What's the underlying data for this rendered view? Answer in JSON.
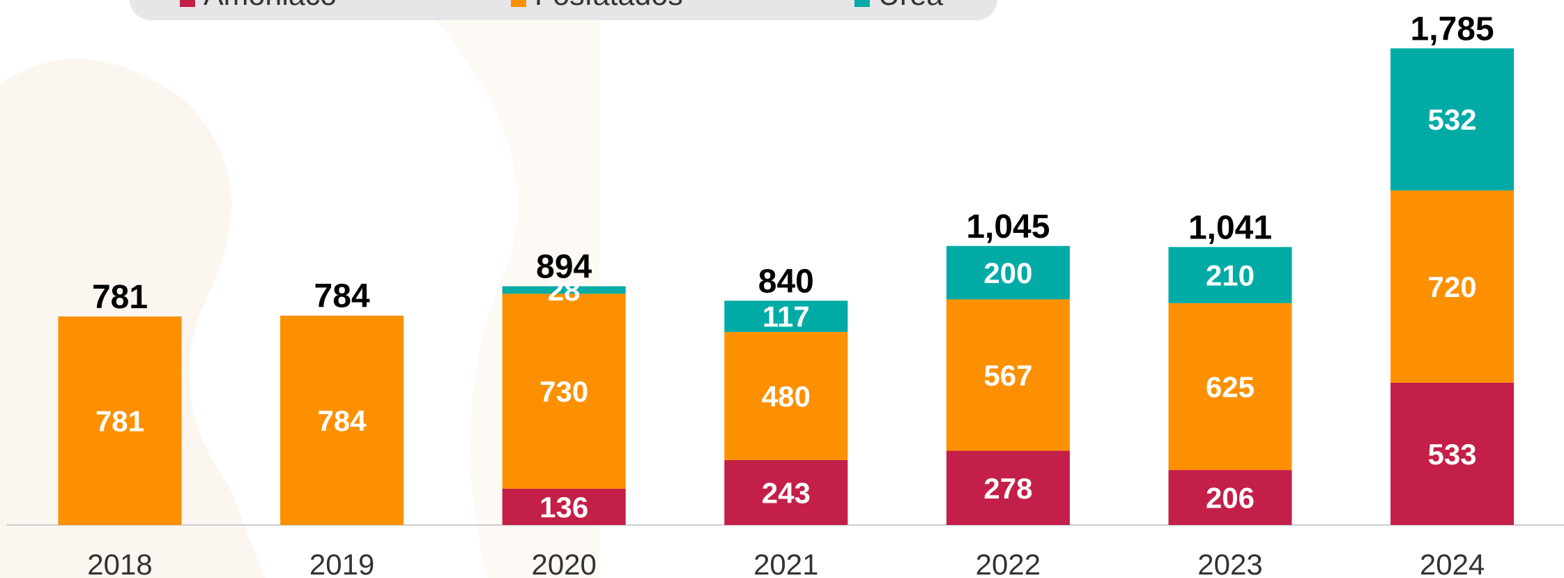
{
  "chart_data": {
    "type": "stacked_bar",
    "categories": [
      "2018",
      "2019",
      "2020",
      "2021",
      "2022",
      "2023",
      "2024"
    ],
    "series": [
      {
        "name": "Amoniaco",
        "color": "#c31f48",
        "values": [
          null,
          null,
          136,
          243,
          278,
          206,
          533
        ]
      },
      {
        "name": "Fosfatados",
        "color": "#fd9000",
        "values": [
          781,
          784,
          730,
          480,
          567,
          625,
          720
        ]
      },
      {
        "name": "Urea",
        "color": "#00aba6",
        "values": [
          null,
          null,
          28,
          117,
          200,
          210,
          532
        ]
      }
    ],
    "totals": [
      781,
      784,
      894,
      840,
      1045,
      1041,
      1785
    ],
    "totals_labels": [
      "781",
      "784",
      "894",
      "840",
      "1,045",
      "1,041",
      "1,785"
    ]
  }
}
